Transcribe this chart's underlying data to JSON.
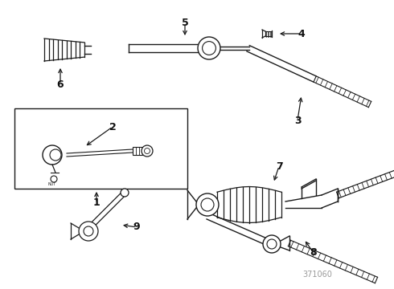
{
  "bg_color": "#ffffff",
  "line_color": "#1a1a1a",
  "label_color": "#111111",
  "watermark": "371060",
  "fig_width": 4.9,
  "fig_height": 3.6,
  "dpi": 100
}
